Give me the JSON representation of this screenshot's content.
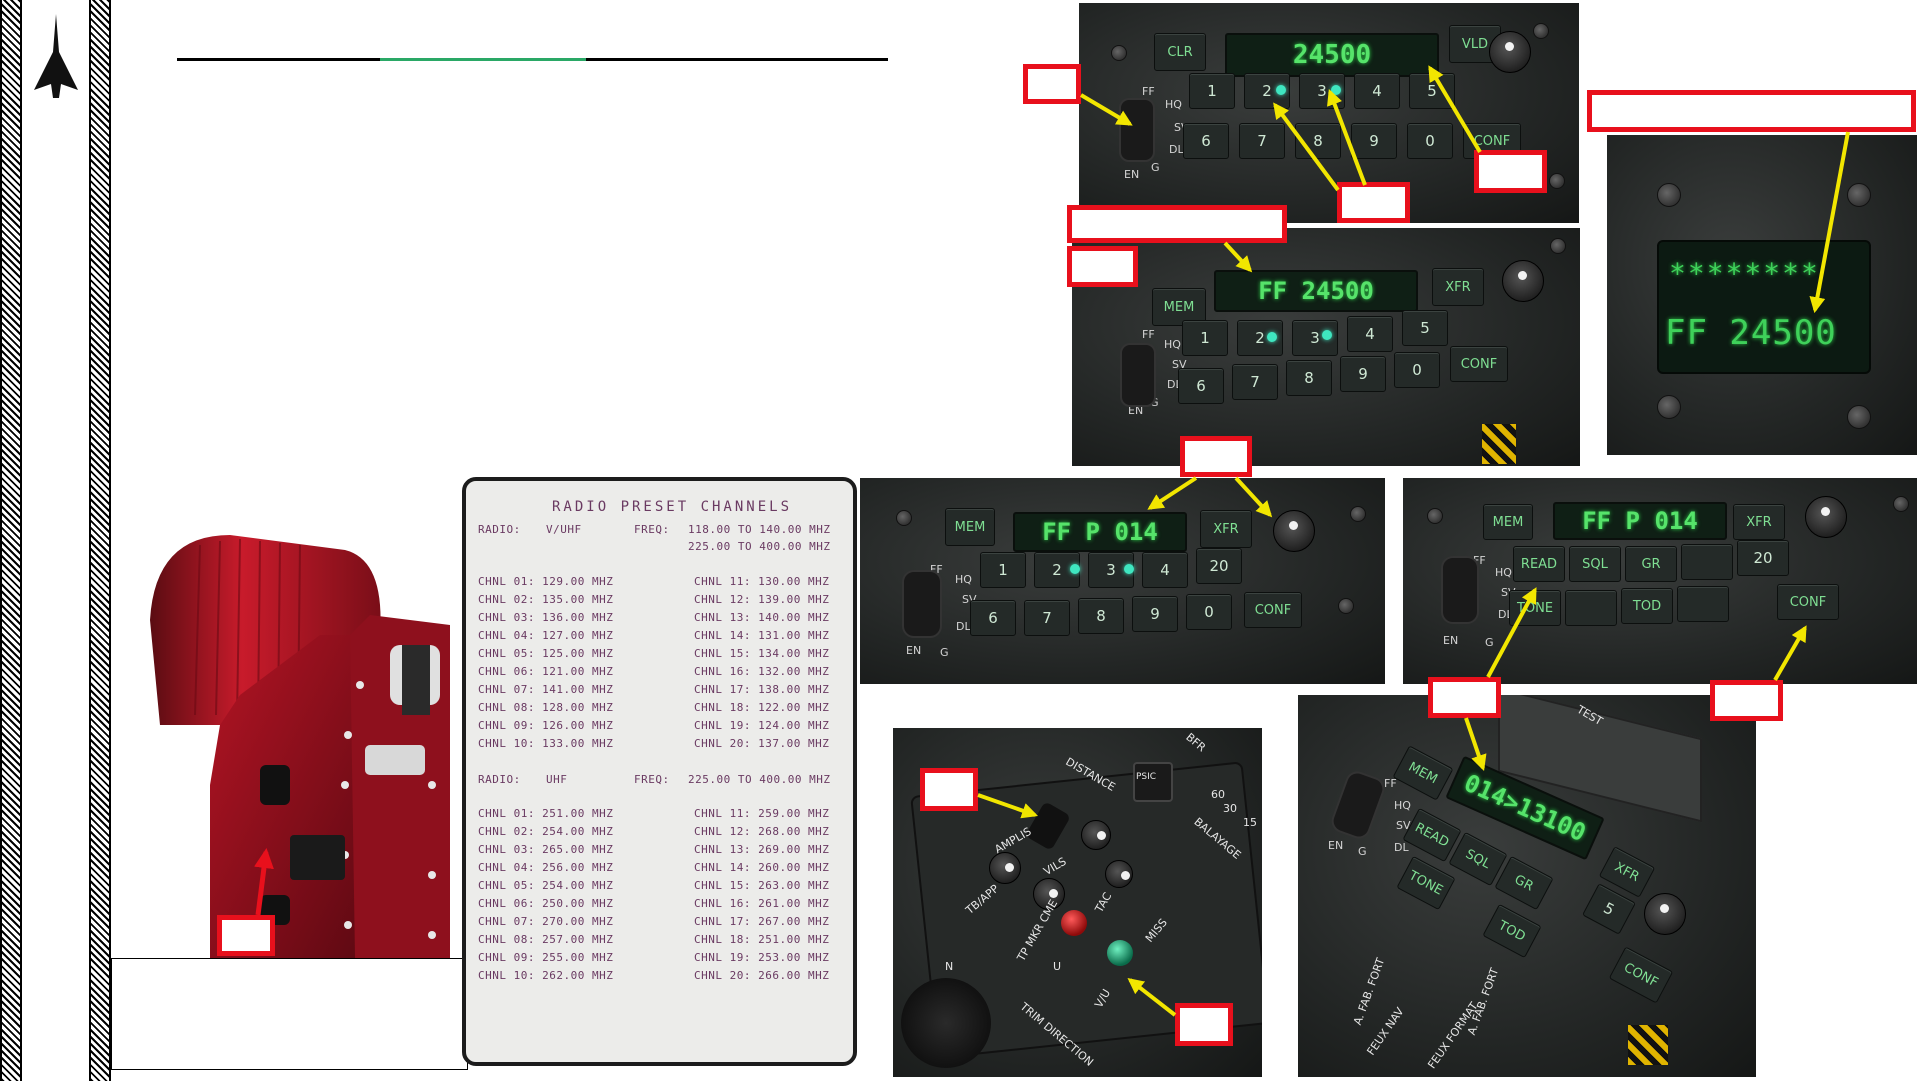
{
  "ufcp": {
    "top": {
      "clr": "CLR",
      "vld": "VLD",
      "display": "24500",
      "keys_row1": [
        "1",
        "2",
        "3",
        "4",
        "5"
      ],
      "keys_row2": [
        "6",
        "7",
        "8",
        "9",
        "0"
      ],
      "conf": "CONF",
      "side_labels": [
        "FF",
        "HQ",
        "SV",
        "DL",
        "G",
        "EN"
      ]
    },
    "mem": {
      "mem": "MEM",
      "xfr": "XFR",
      "display": "FF 24500",
      "keys_row1": [
        "1",
        "2",
        "3",
        "4",
        "5"
      ],
      "keys_row2": [
        "6",
        "7",
        "8",
        "9",
        "0"
      ],
      "conf": "CONF",
      "side_labels": [
        "FF",
        "HQ",
        "SV",
        "DL",
        "G",
        "EN"
      ]
    },
    "preset": {
      "mem": "MEM",
      "xfr": "XFR",
      "display": "FF P 014",
      "keys_row1": [
        "1",
        "2",
        "3",
        "4",
        "20"
      ],
      "keys_row2": [
        "6",
        "7",
        "8",
        "9",
        "0"
      ],
      "conf": "CONF",
      "side_labels": [
        "FF",
        "HQ",
        "SV",
        "DL",
        "G",
        "EN"
      ]
    },
    "functions": {
      "mem": "MEM",
      "xfr": "XFR",
      "display": "FF P 014",
      "keys_row1": [
        "READ",
        "SQL",
        "GR",
        "",
        "20"
      ],
      "keys_row2": [
        "TONE",
        "",
        "TOD",
        "",
        "CONF"
      ],
      "side_labels": [
        "FF",
        "HQ",
        "SV",
        "DL",
        "G",
        "EN"
      ]
    },
    "read": {
      "mem": "MEM",
      "xfr": "XFR",
      "display": "014>13100",
      "keys": [
        "READ",
        "SQL",
        "GR",
        "TONE",
        "TOD",
        "5",
        "CONF"
      ],
      "side_labels": [
        "FF",
        "HQ",
        "SV",
        "DL",
        "G",
        "EN"
      ],
      "caps": [
        "TEST",
        "A. FAB. FORT",
        "FEUX NAV",
        "FEUX FORMAT",
        "A. FAB. FORT"
      ]
    }
  },
  "headup": {
    "line1": "********",
    "line2": "FF 24500"
  },
  "radio_panel": {
    "labels": [
      "DISTANCE",
      "PSIC",
      "BFR",
      "60",
      "30",
      "15",
      "BALAYAGE",
      "AMPLIS",
      "VILS",
      "TB/APP",
      "TP MKR CME",
      "TAC",
      "U",
      "MISS",
      "V/U",
      "N",
      "TRIM DIRECTION"
    ]
  },
  "preset_card": {
    "title": "RADIO PRESET CHANNELS",
    "vuhf": {
      "radio_label": "RADIO:",
      "radio_value": "V/UHF",
      "freq_label": "FREQ:",
      "range1": "118.00 TO 140.00 MHZ",
      "range2": "225.00 TO 400.00 MHZ",
      "channels_left": [
        "CHNL 01: 129.00 MHZ",
        "CHNL 02: 135.00 MHZ",
        "CHNL 03: 136.00 MHZ",
        "CHNL 04: 127.00 MHZ",
        "CHNL 05: 125.00 MHZ",
        "CHNL 06: 121.00 MHZ",
        "CHNL 07: 141.00 MHZ",
        "CHNL 08: 128.00 MHZ",
        "CHNL 09: 126.00 MHZ",
        "CHNL 10: 133.00 MHZ"
      ],
      "channels_right": [
        "CHNL 11: 130.00 MHZ",
        "CHNL 12: 139.00 MHZ",
        "CHNL 13: 140.00 MHZ",
        "CHNL 14: 131.00 MHZ",
        "CHNL 15: 134.00 MHZ",
        "CHNL 16: 132.00 MHZ",
        "CHNL 17: 138.00 MHZ",
        "CHNL 18: 122.00 MHZ",
        "CHNL 19: 124.00 MHZ",
        "CHNL 20: 137.00 MHZ"
      ]
    },
    "uhf": {
      "radio_label": "RADIO:",
      "radio_value": "UHF",
      "freq_label": "FREQ:",
      "range1": "225.00 TO 400.00 MHZ",
      "channels_left": [
        "CHNL 01: 251.00 MHZ",
        "CHNL 02: 254.00 MHZ",
        "CHNL 03: 265.00 MHZ",
        "CHNL 04: 256.00 MHZ",
        "CHNL 05: 254.00 MHZ",
        "CHNL 06: 250.00 MHZ",
        "CHNL 07: 270.00 MHZ",
        "CHNL 08: 257.00 MHZ",
        "CHNL 09: 255.00 MHZ",
        "CHNL 10: 262.00 MHZ"
      ],
      "channels_right": [
        "CHNL 11: 259.00 MHZ",
        "CHNL 12: 268.00 MHZ",
        "CHNL 13: 269.00 MHZ",
        "CHNL 14: 260.00 MHZ",
        "CHNL 15: 263.00 MHZ",
        "CHNL 16: 261.00 MHZ",
        "CHNL 17: 267.00 MHZ",
        "CHNL 18: 251.00 MHZ",
        "CHNL 19: 253.00 MHZ",
        "CHNL 20: 266.00 MHZ"
      ]
    }
  },
  "colors": {
    "callout_red": "#e8101c",
    "arrow_yellow": "#f2e600",
    "lcd_green": "#56e36a",
    "title_line_accent": "#2aa866"
  }
}
